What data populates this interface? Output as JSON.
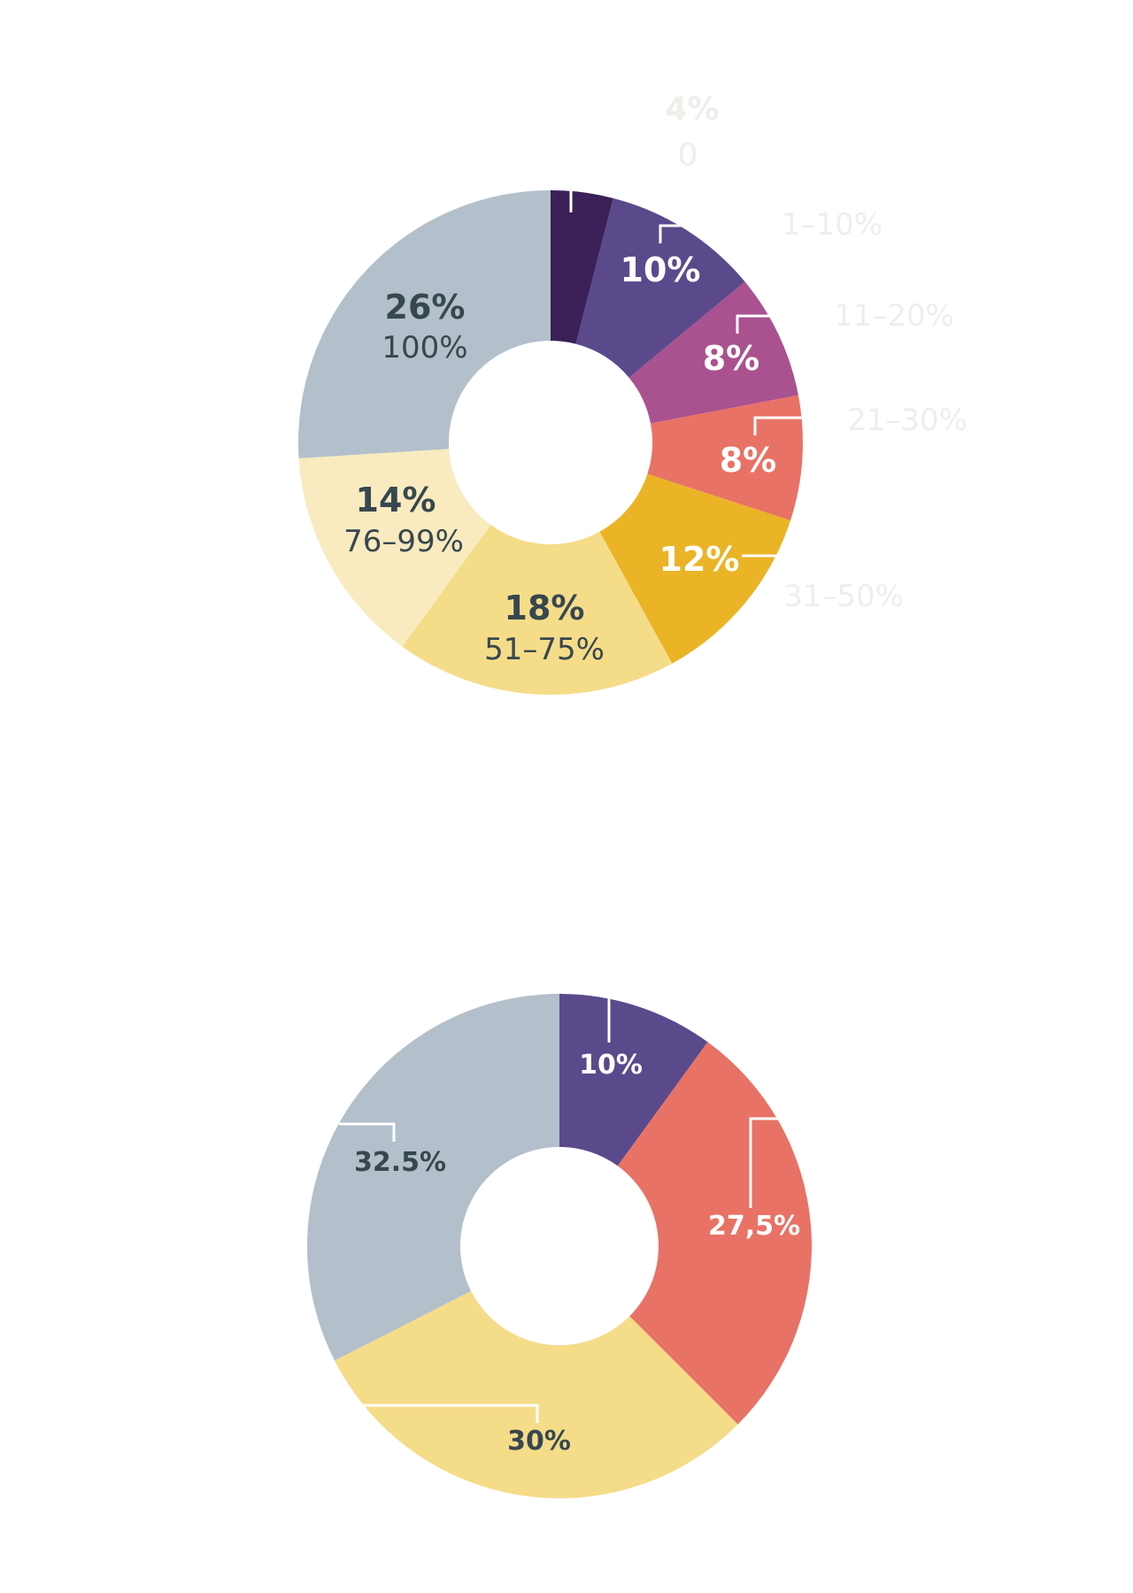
{
  "colors": {
    "dark_purple": "#3b2157",
    "purple": "#5a4a8c",
    "magenta": "#aa518f",
    "coral": "#e87265",
    "gold": "#eab426",
    "light_yellow": "#f5dc89",
    "cream": "#f9ebbf",
    "grey_blue": "#b3bfcb",
    "text_dark": "#37474f",
    "text_white": "#ffffff",
    "text_ghost": "#eeeeea"
  },
  "chart_data": [
    {
      "type": "pie",
      "donut": true,
      "slices": [
        {
          "value": 4,
          "pct_label": "4%",
          "cat_label": "0",
          "color": "#3b2157",
          "text_color": "#eeeeea"
        },
        {
          "value": 10,
          "pct_label": "10%",
          "cat_label": "1–10%",
          "color": "#5a4a8c",
          "text_color": "#ffffff"
        },
        {
          "value": 8,
          "pct_label": "8%",
          "cat_label": "11–20%",
          "color": "#aa518f",
          "text_color": "#ffffff"
        },
        {
          "value": 8,
          "pct_label": "8%",
          "cat_label": "21–30%",
          "color": "#e87265",
          "text_color": "#ffffff"
        },
        {
          "value": 12,
          "pct_label": "12%",
          "cat_label": "31–50%",
          "color": "#eab426",
          "text_color": "#ffffff"
        },
        {
          "value": 18,
          "pct_label": "18%",
          "cat_label": "51–75%",
          "color": "#f5dc89",
          "text_color": "#37474f"
        },
        {
          "value": 14,
          "pct_label": "14%",
          "cat_label": "76–99%",
          "color": "#f9ebbf",
          "text_color": "#37474f"
        },
        {
          "value": 26,
          "pct_label": "26%",
          "cat_label": "100%",
          "color": "#b3bfcb",
          "text_color": "#37474f"
        }
      ]
    },
    {
      "type": "pie",
      "donut": true,
      "slices": [
        {
          "value": 10,
          "pct_label": "10%",
          "color": "#5a4a8c",
          "text_color": "#ffffff"
        },
        {
          "value": 27.5,
          "pct_label": "27,5%",
          "color": "#e87265",
          "text_color": "#ffffff"
        },
        {
          "value": 30,
          "pct_label": "30%",
          "color": "#f5dc89",
          "text_color": "#37474f"
        },
        {
          "value": 32.5,
          "pct_label": "32.5%",
          "color": "#b3bfcb",
          "text_color": "#37474f"
        }
      ]
    }
  ]
}
